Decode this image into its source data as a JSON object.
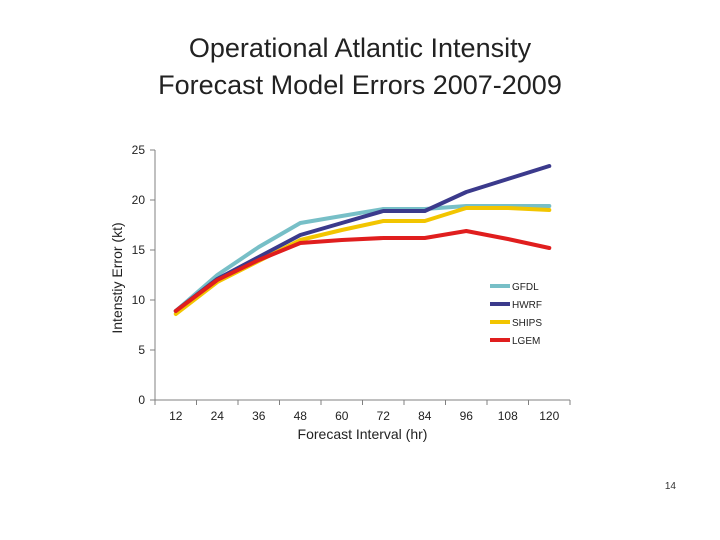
{
  "chart_data": {
    "type": "line",
    "title_lines": [
      "Operational Atlantic Intensity",
      "Forecast Model Errors 2007-2009"
    ],
    "xlabel": "Forecast Interval (hr)",
    "ylabel": "Intenstiy Error (kt)",
    "x": [
      12,
      24,
      36,
      48,
      60,
      72,
      84,
      96,
      108,
      120
    ],
    "ylim": [
      0,
      25
    ],
    "yticks": [
      0,
      5,
      10,
      15,
      20,
      25
    ],
    "grid": false,
    "legend_position": "right",
    "series": [
      {
        "name": "GFDL",
        "color": "#77bfc7",
        "values": [
          8.9,
          12.5,
          15.3,
          17.7,
          18.4,
          19.1,
          19.1,
          19.4,
          19.4,
          19.4
        ]
      },
      {
        "name": "HWRF",
        "color": "#3b3a8c",
        "values": [
          8.9,
          12.1,
          14.3,
          16.5,
          17.7,
          18.9,
          18.9,
          20.8,
          22.1,
          23.4
        ]
      },
      {
        "name": "SHIPS",
        "color": "#f2c500",
        "values": [
          8.6,
          11.8,
          13.9,
          16.0,
          17.0,
          17.9,
          17.9,
          19.2,
          19.2,
          19.0
        ]
      },
      {
        "name": "LGEM",
        "color": "#e01e1e",
        "values": [
          8.9,
          12.0,
          14.0,
          15.7,
          16.0,
          16.2,
          16.2,
          16.9,
          16.1,
          15.2
        ]
      }
    ]
  },
  "page_number": "14"
}
